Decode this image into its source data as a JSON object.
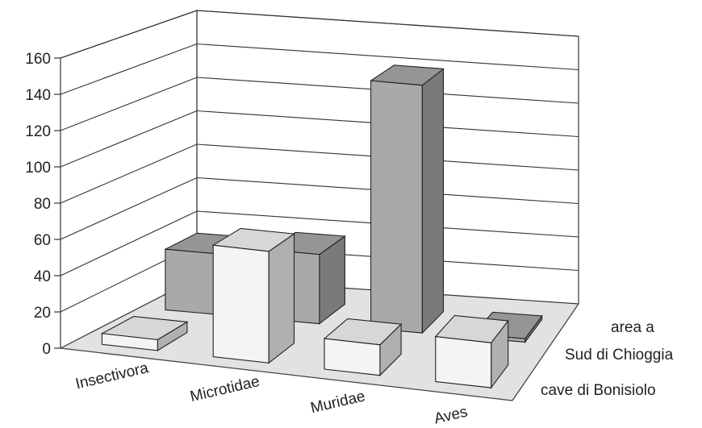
{
  "chart_data": {
    "type": "bar",
    "categories": [
      "Insectivora",
      "Microtidae",
      "Muridae",
      "Aves"
    ],
    "series": [
      {
        "name": "area a Sud di Chioggia",
        "values": [
          35,
          40,
          143,
          2
        ]
      },
      {
        "name": "cave di Bonisiolo",
        "values": [
          6,
          62,
          17,
          25
        ]
      }
    ],
    "y_ticks": [
      "0",
      "20",
      "40",
      "60",
      "80",
      "100",
      "120",
      "140",
      "160"
    ],
    "ylim": [
      0,
      160
    ],
    "grid": true,
    "colors": {
      "area a Sud di Chioggia": "#a9a9a9",
      "cave di Bonisiolo": "#f4f4f4",
      "floor": "#e2e2e2"
    }
  },
  "series_labels": {
    "back_line1": "area a",
    "back_line2": "Sud di Chioggia",
    "front": "cave di Bonisiolo"
  }
}
